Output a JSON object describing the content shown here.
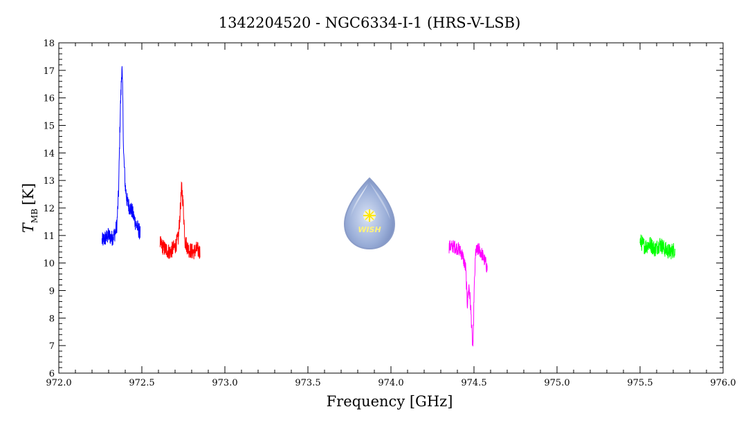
{
  "chart_data": {
    "type": "line",
    "title": "1342204520 - NGC6334-I-1 (HRS-V-LSB)",
    "xlabel": "Frequency [GHz]",
    "ylabel_main": "T",
    "ylabel_sub": "MB",
    "ylabel_unit": "[K]",
    "xlim": [
      972.0,
      976.0
    ],
    "ylim": [
      6,
      18
    ],
    "x_ticks": [
      "972.0",
      "972.5",
      "973.0",
      "973.5",
      "974.0",
      "974.5",
      "975.0",
      "975.5",
      "976.0"
    ],
    "y_ticks": [
      "6",
      "7",
      "8",
      "9",
      "10",
      "11",
      "12",
      "13",
      "14",
      "15",
      "16",
      "17",
      "18"
    ],
    "grid": false,
    "logo": {
      "text": "WISH",
      "name": "wish-logo"
    },
    "series": [
      {
        "color": "#0000ff",
        "points": [
          [
            972.26,
            10.8
          ],
          [
            972.28,
            10.9
          ],
          [
            972.3,
            11.0
          ],
          [
            972.32,
            10.9
          ],
          [
            972.34,
            11.1
          ],
          [
            972.35,
            11.4
          ],
          [
            972.36,
            12.6
          ],
          [
            972.37,
            15.5
          ],
          [
            972.38,
            17.2
          ],
          [
            972.385,
            16.0
          ],
          [
            972.39,
            14.0
          ],
          [
            972.4,
            12.8
          ],
          [
            972.41,
            12.3
          ],
          [
            972.42,
            12.1
          ],
          [
            972.44,
            11.9
          ],
          [
            972.46,
            11.5
          ],
          [
            972.48,
            11.2
          ],
          [
            972.49,
            11.1
          ]
        ],
        "noise": 0.3
      },
      {
        "color": "#ff0000",
        "points": [
          [
            972.61,
            10.7
          ],
          [
            972.64,
            10.5
          ],
          [
            972.67,
            10.4
          ],
          [
            972.7,
            10.6
          ],
          [
            972.72,
            10.9
          ],
          [
            972.73,
            11.8
          ],
          [
            972.74,
            12.8
          ],
          [
            972.75,
            12.0
          ],
          [
            972.76,
            10.8
          ],
          [
            972.78,
            10.5
          ],
          [
            972.81,
            10.4
          ],
          [
            972.83,
            10.5
          ],
          [
            972.85,
            10.4
          ]
        ],
        "noise": 0.3
      },
      {
        "color": "#ff00ff",
        "points": [
          [
            974.35,
            10.6
          ],
          [
            974.38,
            10.6
          ],
          [
            974.41,
            10.5
          ],
          [
            974.43,
            10.3
          ],
          [
            974.45,
            9.8
          ],
          [
            974.46,
            8.5
          ],
          [
            974.47,
            9.2
          ],
          [
            974.48,
            8.4
          ],
          [
            974.49,
            7.2
          ],
          [
            974.495,
            6.9
          ],
          [
            974.5,
            8.8
          ],
          [
            974.51,
            10.4
          ],
          [
            974.53,
            10.5
          ],
          [
            974.55,
            10.3
          ],
          [
            974.57,
            10.0
          ],
          [
            974.58,
            9.8
          ]
        ],
        "noise": 0.25
      },
      {
        "color": "#00ff00",
        "points": [
          [
            975.5,
            10.8
          ],
          [
            975.53,
            10.6
          ],
          [
            975.56,
            10.7
          ],
          [
            975.59,
            10.5
          ],
          [
            975.62,
            10.7
          ],
          [
            975.65,
            10.5
          ],
          [
            975.68,
            10.4
          ],
          [
            975.71,
            10.5
          ]
        ],
        "noise": 0.3
      }
    ]
  }
}
